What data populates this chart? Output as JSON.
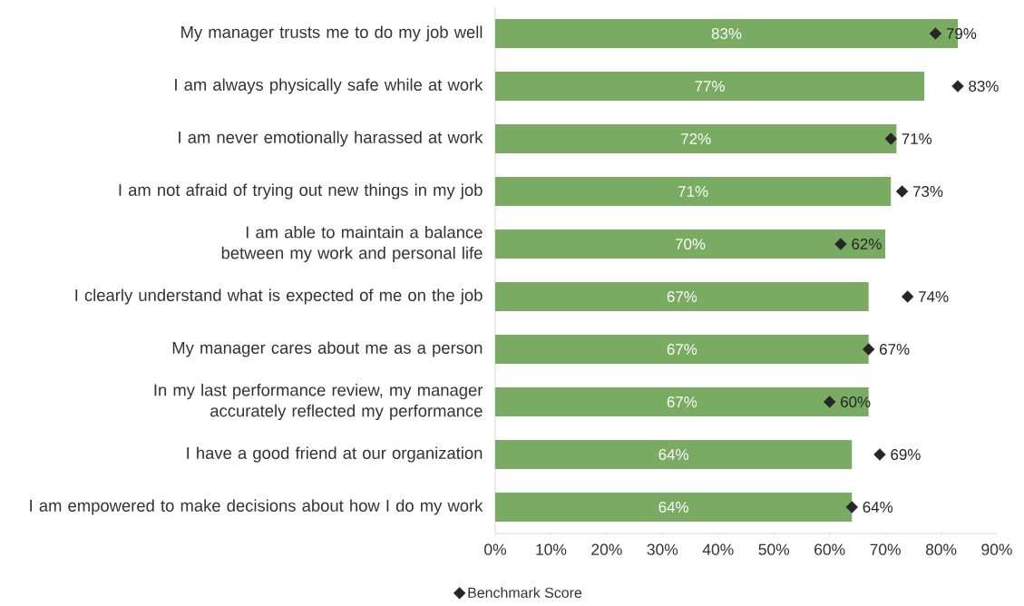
{
  "chart_data": {
    "type": "bar",
    "orientation": "horizontal",
    "categories": [
      "My manager trusts me to do my job well",
      "I am always physically safe while at work",
      "I am never emotionally harassed at work",
      "I am not afraid of trying out new things in my job",
      "I am able to maintain a balance between my work and personal life",
      "I clearly understand what is expected of me on the job",
      "My manager cares about me as a person",
      "In my last performance review, my manager accurately reflected my performance",
      "I have a good friend at our organization",
      "I am empowered to make decisions about how I do my work"
    ],
    "series": [
      {
        "color": "#7aab63",
        "values": [
          83,
          77,
          72,
          71,
          70,
          67,
          67,
          67,
          64,
          64
        ],
        "value_labels": [
          "83%",
          "77%",
          "72%",
          "71%",
          "70%",
          "67%",
          "67%",
          "67%",
          "64%",
          "64%"
        ]
      },
      {
        "type": "scatter",
        "name": "Benchmark Score",
        "color": "#262626",
        "marker": "diamond",
        "values": [
          79,
          83,
          71,
          73,
          62,
          74,
          67,
          60,
          69,
          64
        ],
        "value_labels": [
          "79%",
          "83%",
          "71%",
          "73%",
          "62%",
          "74%",
          "67%",
          "60%",
          "69%",
          "64%"
        ]
      }
    ],
    "xlim": [
      0,
      90
    ],
    "xticks": [
      {
        "value": 0,
        "label": "0%"
      },
      {
        "value": 10,
        "label": "10%"
      },
      {
        "value": 20,
        "label": "20%"
      },
      {
        "value": 30,
        "label": "30%"
      },
      {
        "value": 40,
        "label": "40%"
      },
      {
        "value": 50,
        "label": "50%"
      },
      {
        "value": 60,
        "label": "60%"
      },
      {
        "value": 70,
        "label": "70%"
      },
      {
        "value": 80,
        "label": "80%"
      },
      {
        "value": 90,
        "label": "90%"
      }
    ],
    "legend": "bottom"
  }
}
